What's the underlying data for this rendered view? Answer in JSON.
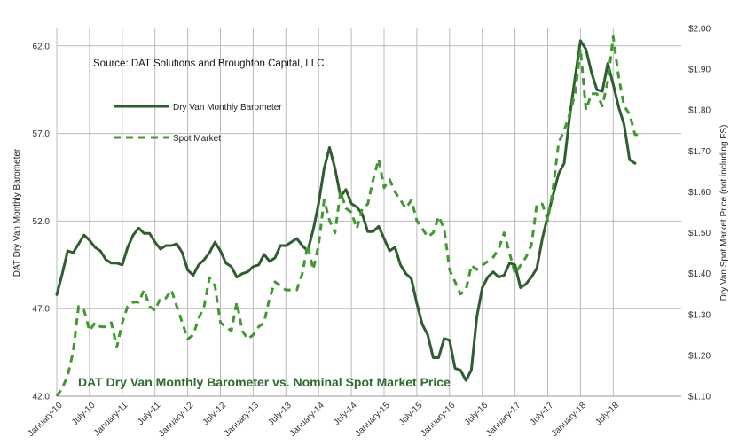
{
  "chart_data": {
    "type": "line",
    "title": "DAT Dry Van Monthly Barometer vs. Nominal Spot Market Price",
    "source": "Source: DAT Solutions and Broughton Capital, LLC",
    "ylabel_left": "DAT Dry Van Monthly Barometer",
    "ylabel_right": "Dry Van Spot Market Price (not including FS)",
    "ylim_left": [
      42,
      63
    ],
    "ylim_right": [
      1.1,
      2.0
    ],
    "yticks_left": [
      "42.0",
      "47.0",
      "52.0",
      "57.0",
      "62.0"
    ],
    "yticks_right": [
      "$1.10",
      "$1.20",
      "$1.30",
      "$1.40",
      "$1.50",
      "$1.60",
      "$1.70",
      "$1.80",
      "$1.90",
      "$2.00"
    ],
    "x_ticks": [
      "January-10",
      "July-10",
      "January-11",
      "July-11",
      "January-12",
      "July-12",
      "January-13",
      "July-13",
      "January-14",
      "July-14",
      "January-15",
      "July-15",
      "January-16",
      "July-16",
      "January-17",
      "July-17",
      "January-18",
      "July-18"
    ],
    "x_start_month_label": "January-10",
    "colors": {
      "barometer": "#2e5e2e",
      "spot": "#3f9a2f",
      "grid": "#bbbbbb"
    },
    "legend_position": "top-left",
    "grid": true,
    "series": [
      {
        "name": "Dry Van Monthly Barometer",
        "axis": "left",
        "style": "solid",
        "values": [
          47.8,
          49.0,
          50.3,
          50.2,
          50.7,
          51.2,
          50.9,
          50.5,
          50.3,
          49.8,
          49.6,
          49.6,
          49.5,
          50.5,
          51.2,
          51.6,
          51.3,
          51.3,
          50.8,
          50.4,
          50.6,
          50.6,
          50.7,
          50.2,
          49.2,
          48.9,
          49.5,
          49.8,
          50.2,
          50.8,
          50.3,
          49.6,
          49.4,
          48.8,
          49.0,
          49.1,
          49.4,
          49.5,
          50.1,
          49.7,
          49.9,
          50.6,
          50.6,
          50.8,
          51.0,
          50.6,
          50.3,
          51.5,
          53.0,
          55.0,
          56.2,
          55.0,
          53.4,
          53.8,
          53.0,
          52.8,
          52.4,
          51.4,
          51.4,
          51.7,
          51.0,
          50.3,
          50.5,
          49.5,
          49.0,
          48.7,
          47.3,
          46.1,
          45.5,
          44.2,
          44.2,
          45.3,
          45.2,
          43.6,
          43.5,
          42.9,
          43.5,
          46.5,
          48.2,
          48.8,
          49.1,
          48.8,
          48.9,
          49.6,
          49.5,
          48.2,
          48.4,
          48.8,
          49.3,
          51.0,
          52.3,
          53.5,
          54.7,
          55.3,
          57.9,
          60.2,
          62.3,
          61.8,
          60.5,
          59.5,
          59.4,
          61.0,
          59.8,
          58.5,
          57.5,
          55.5,
          55.3
        ]
      },
      {
        "name": "Spot Market",
        "axis": "right",
        "style": "dashed",
        "values": [
          1.1,
          1.12,
          1.15,
          1.21,
          1.32,
          1.31,
          1.26,
          1.28,
          1.27,
          1.27,
          1.28,
          1.22,
          1.28,
          1.32,
          1.33,
          1.33,
          1.36,
          1.32,
          1.31,
          1.34,
          1.34,
          1.36,
          1.32,
          1.28,
          1.24,
          1.25,
          1.29,
          1.32,
          1.39,
          1.37,
          1.28,
          1.27,
          1.26,
          1.33,
          1.26,
          1.24,
          1.25,
          1.27,
          1.28,
          1.34,
          1.38,
          1.37,
          1.36,
          1.36,
          1.36,
          1.4,
          1.47,
          1.41,
          1.47,
          1.58,
          1.53,
          1.5,
          1.6,
          1.56,
          1.55,
          1.51,
          1.56,
          1.57,
          1.63,
          1.68,
          1.61,
          1.63,
          1.6,
          1.58,
          1.56,
          1.58,
          1.53,
          1.51,
          1.49,
          1.5,
          1.54,
          1.51,
          1.41,
          1.38,
          1.35,
          1.36,
          1.42,
          1.41,
          1.42,
          1.43,
          1.44,
          1.46,
          1.5,
          1.45,
          1.4,
          1.42,
          1.44,
          1.47,
          1.57,
          1.57,
          1.53,
          1.61,
          1.72,
          1.75,
          1.79,
          1.84,
          1.95,
          1.8,
          1.84,
          1.84,
          1.81,
          1.87,
          1.98,
          1.88,
          1.81,
          1.79,
          1.74,
          1.74
        ]
      }
    ]
  }
}
